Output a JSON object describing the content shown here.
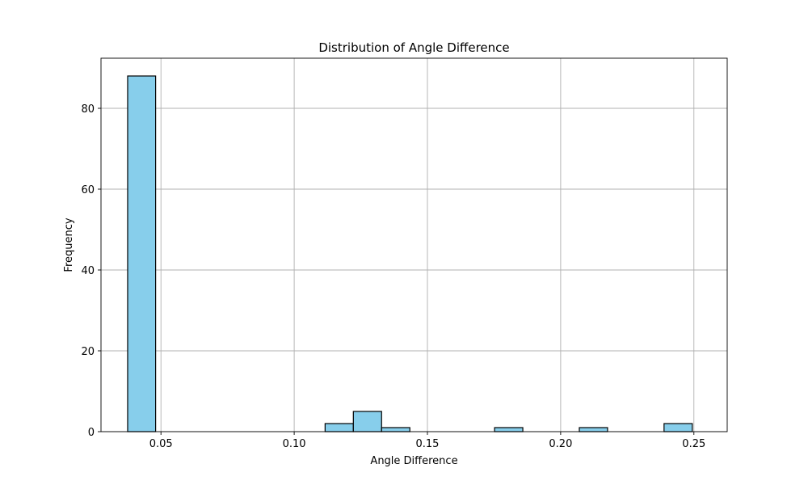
{
  "chart_data": {
    "type": "bar",
    "title": "Distribution of Angle Difference",
    "xlabel": "Angle Difference",
    "ylabel": "Frequency",
    "xlim": [
      0.0275,
      0.2625
    ],
    "ylim": [
      0,
      92.4
    ],
    "x_ticks": [
      0.05,
      0.1,
      0.15,
      0.2,
      0.25
    ],
    "x_tick_labels": [
      "0.05",
      "0.10",
      "0.15",
      "0.20",
      "0.25"
    ],
    "y_ticks": [
      0,
      20,
      40,
      60,
      80
    ],
    "y_tick_labels": [
      "0",
      "20",
      "40",
      "60",
      "80"
    ],
    "grid": true,
    "bar_color": "#87ceeb",
    "edge_color": "#000000",
    "bins": [
      {
        "x0": 0.0375,
        "x1": 0.048,
        "count": 88
      },
      {
        "x0": 0.048,
        "x1": 0.0586,
        "count": 0
      },
      {
        "x0": 0.0586,
        "x1": 0.0692,
        "count": 0
      },
      {
        "x0": 0.0692,
        "x1": 0.0798,
        "count": 0
      },
      {
        "x0": 0.0798,
        "x1": 0.0904,
        "count": 0
      },
      {
        "x0": 0.0904,
        "x1": 0.101,
        "count": 0
      },
      {
        "x0": 0.101,
        "x1": 0.1116,
        "count": 0
      },
      {
        "x0": 0.1116,
        "x1": 0.1222,
        "count": 2
      },
      {
        "x0": 0.1222,
        "x1": 0.1328,
        "count": 5
      },
      {
        "x0": 0.1328,
        "x1": 0.1434,
        "count": 1
      },
      {
        "x0": 0.1434,
        "x1": 0.154,
        "count": 0
      },
      {
        "x0": 0.154,
        "x1": 0.1646,
        "count": 0
      },
      {
        "x0": 0.1646,
        "x1": 0.1752,
        "count": 0
      },
      {
        "x0": 0.1752,
        "x1": 0.1858,
        "count": 1
      },
      {
        "x0": 0.1858,
        "x1": 0.1964,
        "count": 0
      },
      {
        "x0": 0.1964,
        "x1": 0.207,
        "count": 0
      },
      {
        "x0": 0.207,
        "x1": 0.2176,
        "count": 1
      },
      {
        "x0": 0.2176,
        "x1": 0.2282,
        "count": 0
      },
      {
        "x0": 0.2282,
        "x1": 0.2388,
        "count": 0
      },
      {
        "x0": 0.2388,
        "x1": 0.2494,
        "count": 2
      }
    ]
  }
}
